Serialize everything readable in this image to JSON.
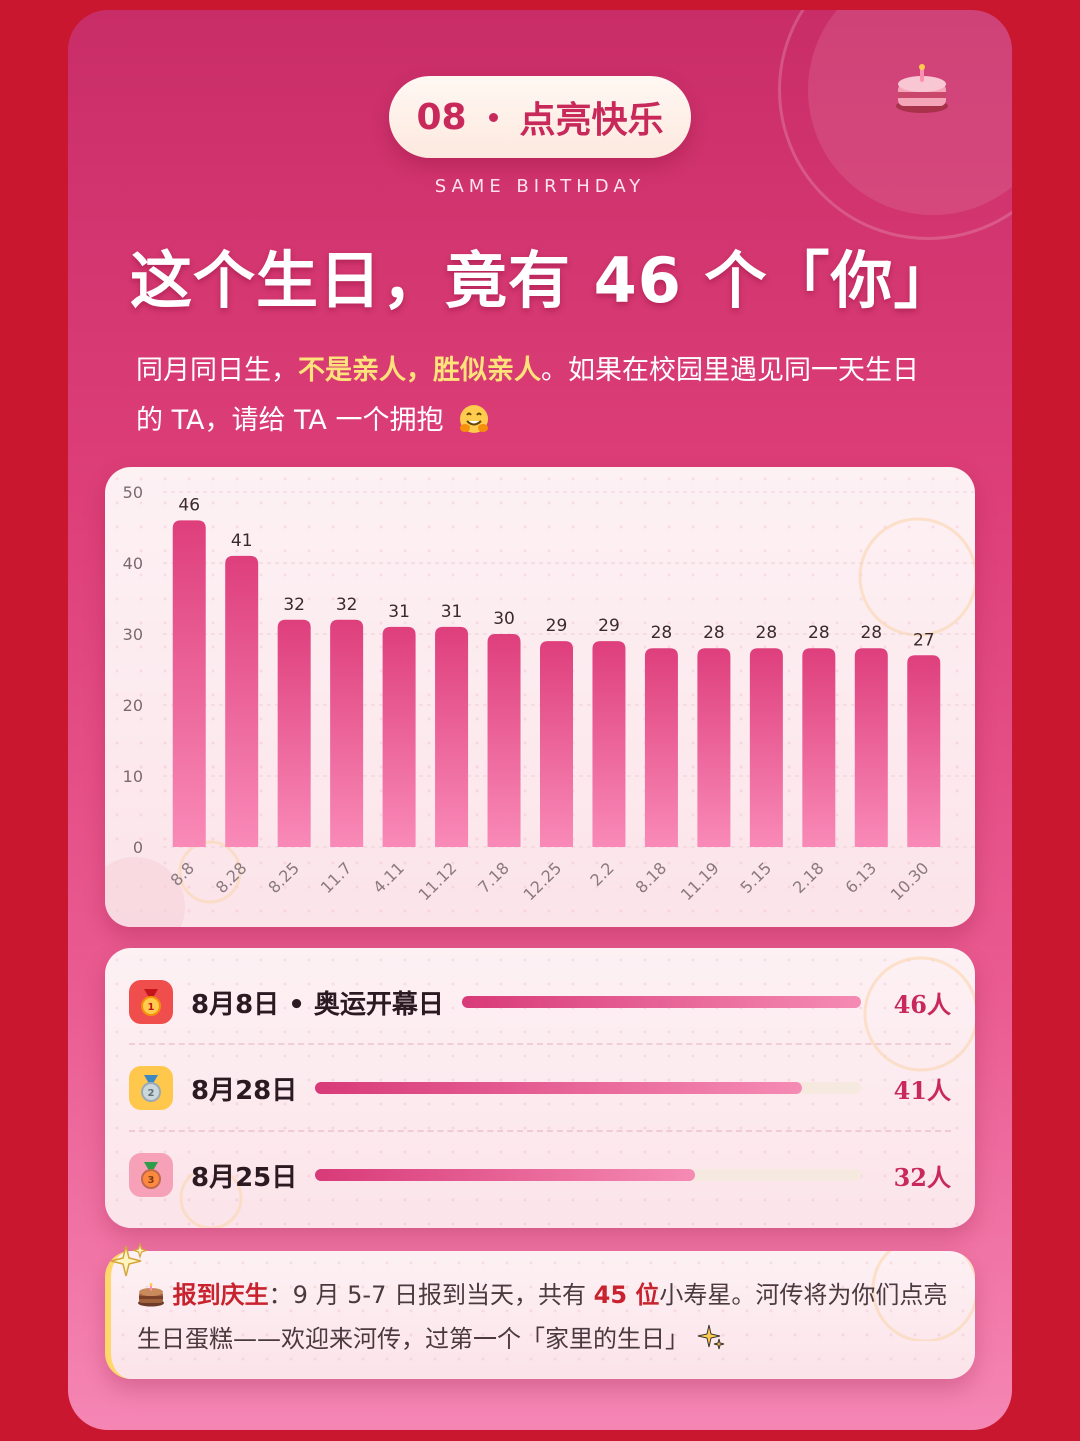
{
  "header": {
    "badge_num": "08",
    "badge_text": "点亮快乐",
    "subtitle": "SAME BIRTHDAY",
    "headline": "这个生日，竟有 46 个「你」",
    "intro_part1": "同月同日生，",
    "intro_highlight": "不是亲人，胜似亲人",
    "intro_part2": "。如果在校园里遇见同一天生日的 TA，请给 TA 一个拥抱",
    "icons": [
      "cake-icon",
      "hugging-face-icon"
    ]
  },
  "chart_data": {
    "type": "bar",
    "categories": [
      "8.8",
      "8.28",
      "8.25",
      "11.7",
      "4.11",
      "11.12",
      "7.18",
      "12.25",
      "2.2",
      "8.18",
      "11.19",
      "5.15",
      "2.18",
      "6.13",
      "10.30"
    ],
    "values": [
      46,
      41,
      32,
      32,
      31,
      31,
      30,
      29,
      29,
      28,
      28,
      28,
      28,
      28,
      27
    ],
    "yticks": [
      0,
      10,
      20,
      30,
      40,
      50
    ],
    "ylim": [
      0,
      50
    ],
    "grid": true,
    "bar_color": "#e0457e"
  },
  "ranking": [
    {
      "label": "8月8日 • 奥运开幕日",
      "count": "46人",
      "value": 46,
      "medal": "gold-medal-icon"
    },
    {
      "label": "8月28日",
      "count": "41人",
      "value": 41,
      "medal": "silver-medal-icon"
    },
    {
      "label": "8月25日",
      "count": "32人",
      "value": 32,
      "medal": "bronze-medal-icon"
    }
  ],
  "note": {
    "title": "报到庆生",
    "text1": "：9 月 5-7 日报到当天，共有 ",
    "count": "45 位",
    "text2": "小寿星。河传将为你们点亮生日蛋糕——欢迎来河传，过第一个「家里的生日」"
  },
  "colors": {
    "accent": "#c8285a",
    "highlight": "#ffe37a",
    "page_bg": "#c8172f"
  }
}
